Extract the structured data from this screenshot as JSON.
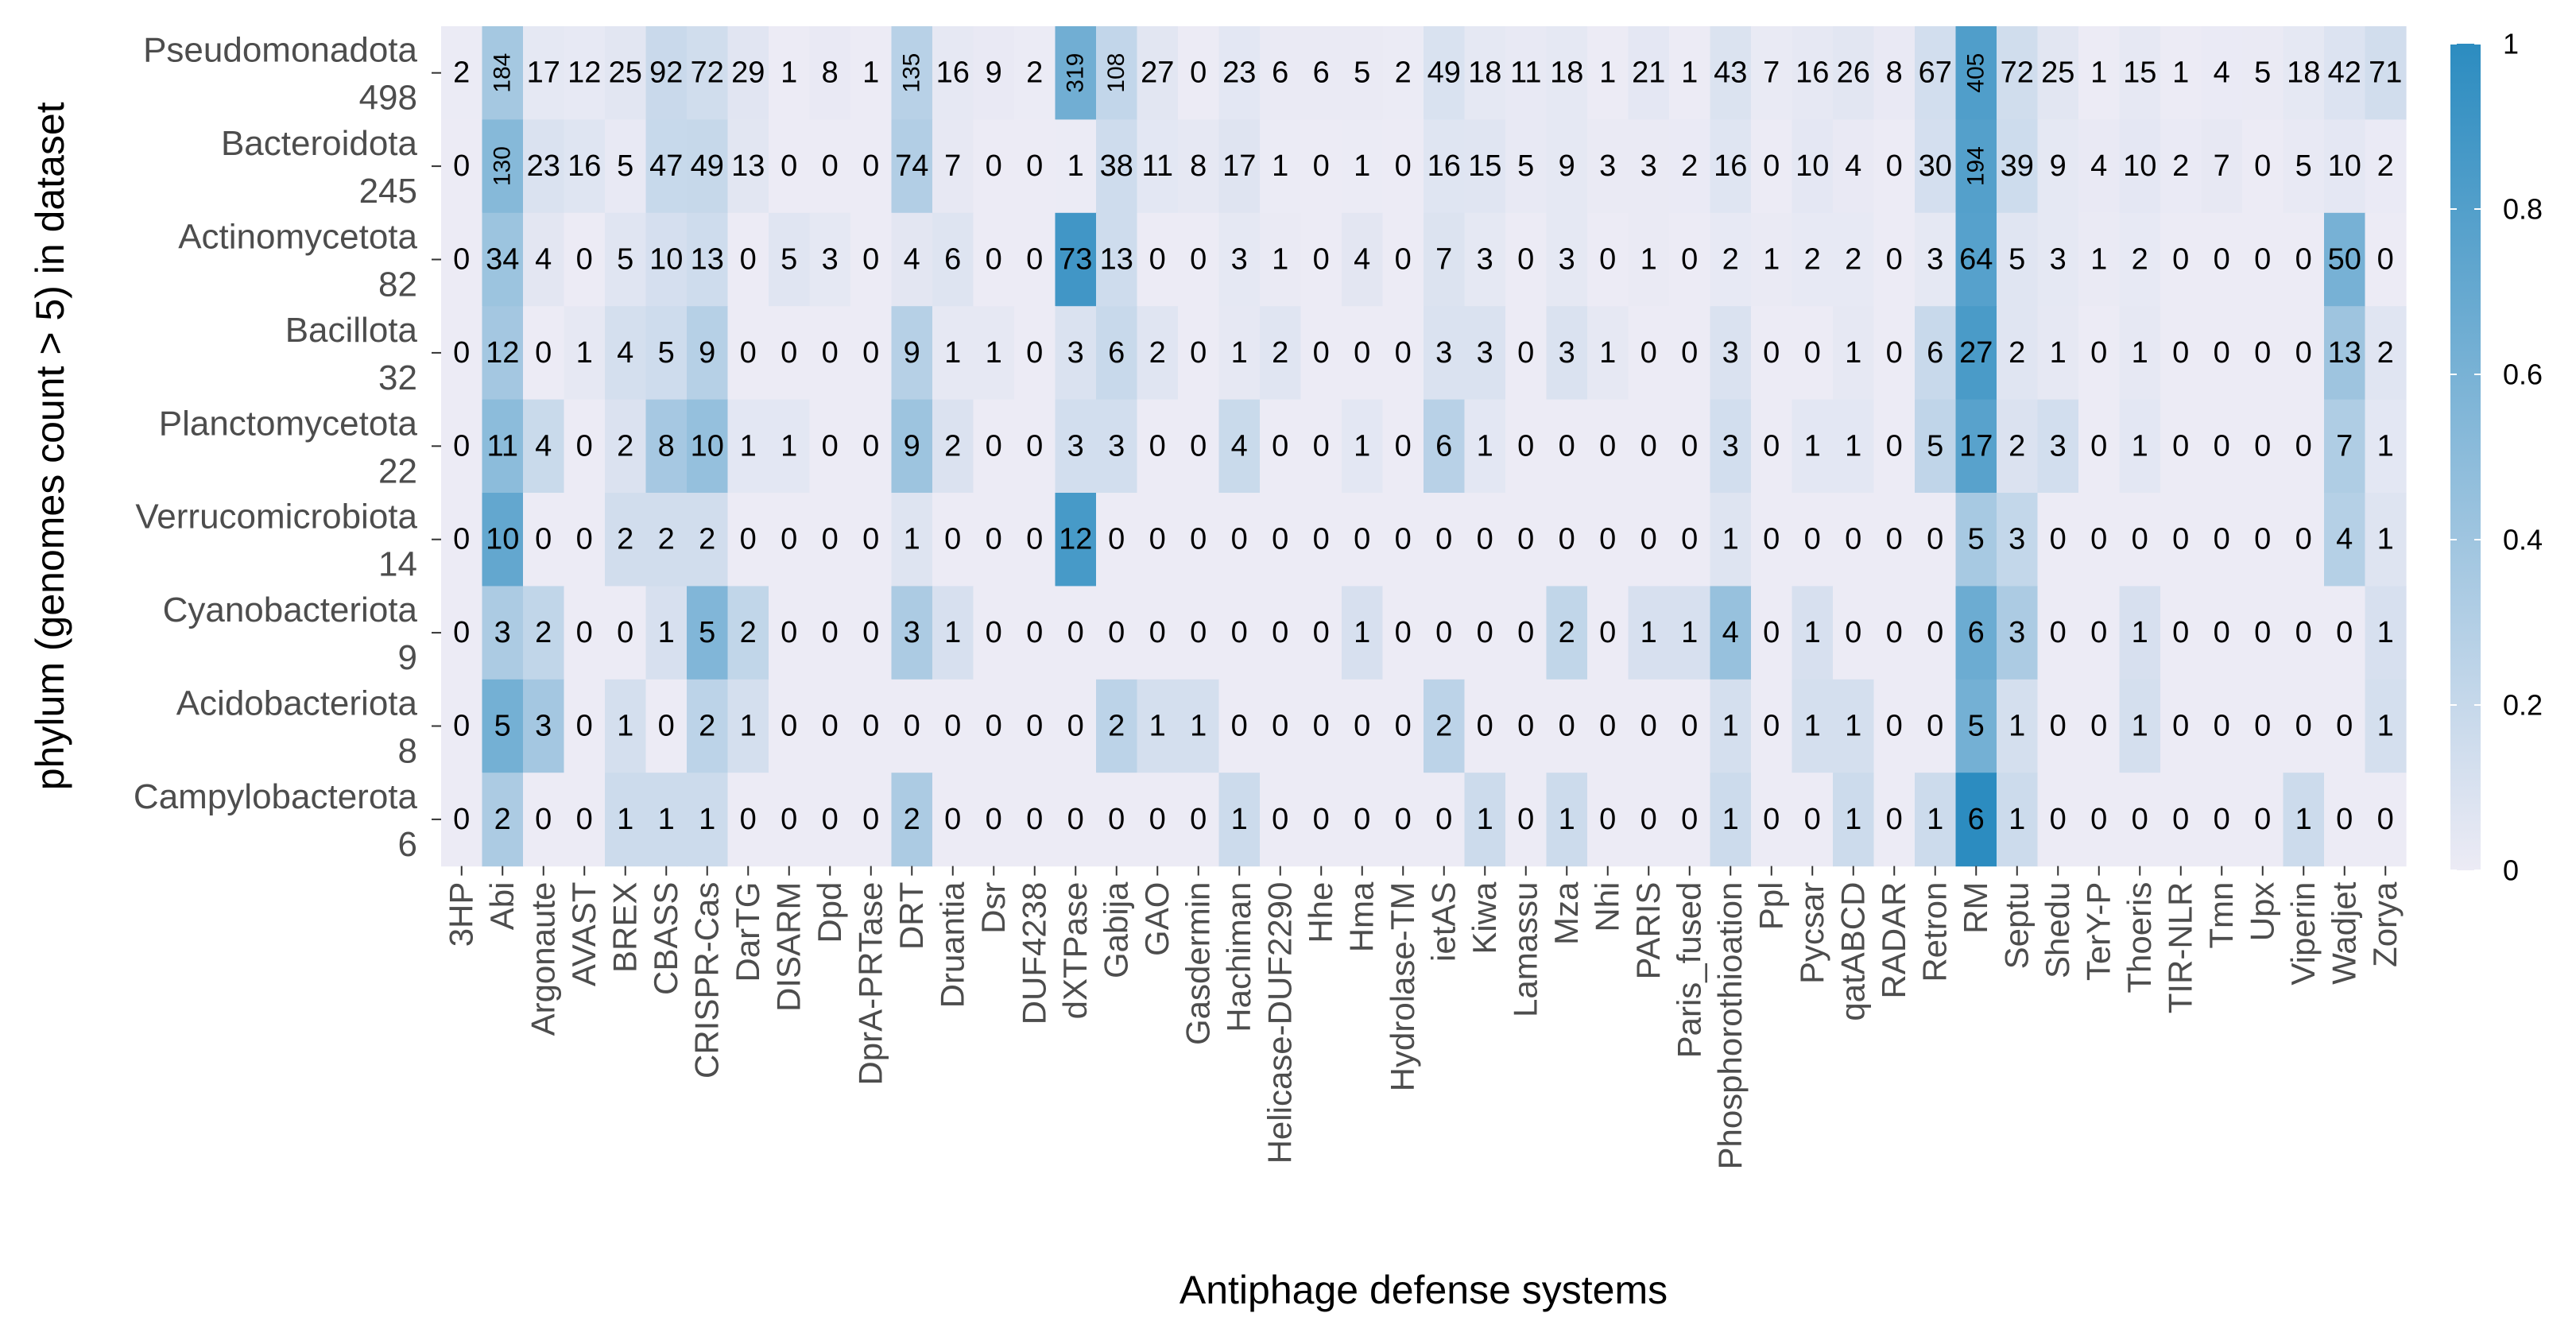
{
  "chart_data": {
    "type": "heatmap",
    "title": "",
    "xlabel": "Antiphage defense systems",
    "ylabel": "phylum (genomes count > 5) in dataset",
    "columns": [
      "3HP",
      "Abi",
      "Argonaute",
      "AVAST",
      "BREX",
      "CBASS",
      "CRISPR-Cas",
      "DarTG",
      "DISARM",
      "Dpd",
      "DprA-PRTase",
      "DRT",
      "Druantia",
      "Dsr",
      "DUF4238",
      "dXTPase",
      "Gabija",
      "GAO",
      "Gasdermin",
      "Hachiman",
      "Helicase-DUF2290",
      "Hhe",
      "Hma",
      "Hydrolase-TM",
      "ietAS",
      "Kiwa",
      "Lamassu",
      "Mza",
      "Nhi",
      "PARIS",
      "Paris_fused",
      "Phosphorothioation",
      "Ppl",
      "Pycsar",
      "qatABCD",
      "RADAR",
      "Retron",
      "RM",
      "Septu",
      "Shedu",
      "TerY-P",
      "Thoeris",
      "TIR-NLR",
      "Tmn",
      "Upx",
      "Viperin",
      "Wadjet",
      "Zorya"
    ],
    "rows": [
      {
        "name": "Pseudomonadota",
        "count": "498",
        "values": [
          2,
          184,
          17,
          12,
          25,
          92,
          72,
          29,
          1,
          8,
          1,
          135,
          16,
          9,
          2,
          319,
          108,
          27,
          0,
          23,
          6,
          6,
          5,
          2,
          49,
          18,
          11,
          18,
          1,
          21,
          1,
          43,
          7,
          16,
          26,
          8,
          67,
          405,
          72,
          25,
          1,
          15,
          1,
          4,
          5,
          18,
          42,
          71
        ]
      },
      {
        "name": "Bacteroidota",
        "count": "245",
        "values": [
          0,
          130,
          23,
          16,
          5,
          47,
          49,
          13,
          0,
          0,
          0,
          74,
          7,
          0,
          0,
          1,
          38,
          11,
          8,
          17,
          1,
          0,
          1,
          0,
          16,
          15,
          5,
          9,
          3,
          3,
          2,
          16,
          0,
          10,
          4,
          0,
          30,
          194,
          39,
          9,
          4,
          10,
          2,
          7,
          0,
          5,
          10,
          2
        ]
      },
      {
        "name": "Actinomycetota",
        "count": "82",
        "values": [
          0,
          34,
          4,
          0,
          5,
          10,
          13,
          0,
          5,
          3,
          0,
          4,
          6,
          0,
          0,
          73,
          13,
          0,
          0,
          3,
          1,
          0,
          4,
          0,
          7,
          3,
          0,
          3,
          0,
          1,
          0,
          2,
          1,
          2,
          2,
          0,
          3,
          64,
          5,
          3,
          1,
          2,
          0,
          0,
          0,
          0,
          50,
          0
        ]
      },
      {
        "name": "Bacillota",
        "count": "32",
        "values": [
          0,
          12,
          0,
          1,
          4,
          5,
          9,
          0,
          0,
          0,
          0,
          9,
          1,
          1,
          0,
          3,
          6,
          2,
          0,
          1,
          2,
          0,
          0,
          0,
          3,
          3,
          0,
          3,
          1,
          0,
          0,
          3,
          0,
          0,
          1,
          0,
          6,
          27,
          2,
          1,
          0,
          1,
          0,
          0,
          0,
          0,
          13,
          2
        ]
      },
      {
        "name": "Planctomycetota",
        "count": "22",
        "values": [
          0,
          11,
          4,
          0,
          2,
          8,
          10,
          1,
          1,
          0,
          0,
          9,
          2,
          0,
          0,
          3,
          3,
          0,
          0,
          4,
          0,
          0,
          1,
          0,
          6,
          1,
          0,
          0,
          0,
          0,
          0,
          3,
          0,
          1,
          1,
          0,
          5,
          17,
          2,
          3,
          0,
          1,
          0,
          0,
          0,
          0,
          7,
          1
        ]
      },
      {
        "name": "Verrucomicrobiota",
        "count": "14",
        "values": [
          0,
          10,
          0,
          0,
          2,
          2,
          2,
          0,
          0,
          0,
          0,
          1,
          0,
          0,
          0,
          12,
          0,
          0,
          0,
          0,
          0,
          0,
          0,
          0,
          0,
          0,
          0,
          0,
          0,
          0,
          0,
          1,
          0,
          0,
          0,
          0,
          0,
          5,
          3,
          0,
          0,
          0,
          0,
          0,
          0,
          0,
          4,
          1
        ]
      },
      {
        "name": "Cyanobacteriota",
        "count": "9",
        "values": [
          0,
          3,
          2,
          0,
          0,
          1,
          5,
          2,
          0,
          0,
          0,
          3,
          1,
          0,
          0,
          0,
          0,
          0,
          0,
          0,
          0,
          0,
          1,
          0,
          0,
          0,
          0,
          2,
          0,
          1,
          1,
          4,
          0,
          1,
          0,
          0,
          0,
          6,
          3,
          0,
          0,
          1,
          0,
          0,
          0,
          0,
          0,
          1
        ]
      },
      {
        "name": "Acidobacteriota",
        "count": "8",
        "values": [
          0,
          5,
          3,
          0,
          1,
          0,
          2,
          1,
          0,
          0,
          0,
          0,
          0,
          0,
          0,
          0,
          2,
          1,
          1,
          0,
          0,
          0,
          0,
          0,
          2,
          0,
          0,
          0,
          0,
          0,
          0,
          1,
          0,
          1,
          1,
          0,
          0,
          5,
          1,
          0,
          0,
          1,
          0,
          0,
          0,
          0,
          0,
          1
        ]
      },
      {
        "name": "Campylobacterota",
        "count": "6",
        "values": [
          0,
          2,
          0,
          0,
          1,
          1,
          1,
          0,
          0,
          0,
          0,
          2,
          0,
          0,
          0,
          0,
          0,
          0,
          0,
          1,
          0,
          0,
          0,
          0,
          0,
          1,
          0,
          1,
          0,
          0,
          0,
          1,
          0,
          0,
          1,
          0,
          1,
          6,
          1,
          0,
          0,
          0,
          0,
          0,
          0,
          1,
          0,
          0
        ]
      }
    ],
    "color_scale": {
      "range": [
        0,
        1
      ],
      "ticks": [
        "0",
        "0.2",
        "0.4",
        "0.6",
        "0.8",
        "1"
      ],
      "low_color": "#ecebf5",
      "high_color": "#2c8cc0"
    },
    "grid": true,
    "legend": "right"
  }
}
